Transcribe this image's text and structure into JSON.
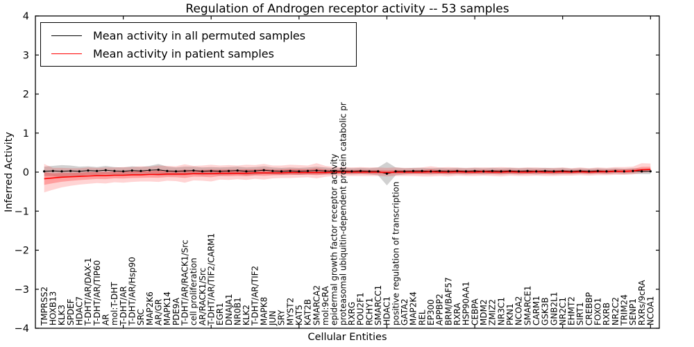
{
  "title": "Regulation of Androgen receptor activity -- 53 samples",
  "axes": {
    "x_label": "Cellular Entities",
    "y_label": "Inferred Activity",
    "y_tick_labels": [
      "4",
      "3",
      "2",
      "1",
      "0",
      "−1",
      "−2",
      "−3",
      "−4"
    ],
    "y_tick_values": [
      4,
      3,
      2,
      1,
      0,
      -1,
      -2,
      -3,
      -4
    ]
  },
  "legend": {
    "entries": [
      {
        "label": "Mean activity in all permuted samples",
        "color": "#000000"
      },
      {
        "label": "Mean activity in patient samples",
        "color": "#ff0000"
      }
    ]
  },
  "colors": {
    "permuted_line": "#000000",
    "permuted_band": "#999999",
    "patient_line": "#ff0000",
    "patient_band": "#ff0000",
    "axis": "#000000"
  },
  "chart_data": {
    "type": "line",
    "title": "Regulation of Androgen receptor activity -- 53 samples",
    "xlabel": "Cellular Entities",
    "ylabel": "Inferred Activity",
    "ylim": [
      -4,
      4
    ],
    "grid": false,
    "legend_position": "upper left",
    "categories": [
      "TMPRSS2",
      "HOXB13",
      "KLK3",
      "SPDEF",
      "HDAC7",
      "T-DHT/AR/DAX-1",
      "T-DHT/AR/TIP60",
      "AR",
      "mol:T-DHT",
      "T-DHT/AR",
      "T-DHT/AR/Hsp90",
      "SRC",
      "MAP2K6",
      "AR/GR",
      "MAPK14",
      "PDE9A",
      "T-DHT/AR/RACK1/Src",
      "cell proliferation",
      "AR/RACK1/Src",
      "T-DHT/AR/TIF2/CARM1",
      "EGR1",
      "DNAJA1",
      "NR0B1",
      "KLK2",
      "T-DHT/AR/TIF2",
      "MAPK8",
      "JUN",
      "SRY",
      "MYST2",
      "KAT5",
      "KAT2B",
      "SMARCA2",
      "mol:9cRA",
      "epidermal growth factor receptor activity",
      "proteasomal ubiquitin-dependent protein catabolic pr",
      "RXRG",
      "POU2F1",
      "RCHY1",
      "SMARCC1",
      "HDAC1",
      "positive regulation of transcription",
      "GATA2",
      "MAP2K4",
      "REL",
      "EP300",
      "APPBP2",
      "BRM/BAF57",
      "RXRA",
      "HSP90AA1",
      "CEBPA",
      "MDM2",
      "ZMIZ2",
      "NR3C1",
      "PKN1",
      "NCOA2",
      "SMARCE1",
      "CARM1",
      "GSK3B",
      "GNB2L1",
      "NR2C1",
      "EHMT2",
      "SIRT1",
      "CREBBP",
      "FOXO1",
      "RXRB",
      "NR2C2",
      "TRIM24",
      "SENP1",
      "RXRs/9cRA",
      "NCOA1"
    ],
    "series": [
      {
        "name": "Mean activity in all permuted samples",
        "color": "#000000",
        "values": [
          0.02,
          0.03,
          0.02,
          0.03,
          0.02,
          0.04,
          0.03,
          0.05,
          0.03,
          0.02,
          0.04,
          0.03,
          0.05,
          0.06,
          0.03,
          0.02,
          0.03,
          0.04,
          0.02,
          0.03,
          0.02,
          0.03,
          0.04,
          0.02,
          0.03,
          0.05,
          0.03,
          0.02,
          0.03,
          0.02,
          0.03,
          0.04,
          0.03,
          0.02,
          0.03,
          0.02,
          0.03,
          0.02,
          0.02,
          -0.04,
          0.02,
          0.02,
          0.03,
          0.03,
          0.02,
          0.03,
          0.02,
          0.03,
          0.02,
          0.03,
          0.02,
          0.03,
          0.02,
          0.03,
          0.02,
          0.03,
          0.02,
          0.03,
          0.02,
          0.03,
          0.02,
          0.03,
          0.02,
          0.03,
          0.02,
          0.03,
          0.02,
          0.03,
          0.02,
          0.02
        ],
        "band_halfwidth": [
          0.12,
          0.13,
          0.16,
          0.14,
          0.12,
          0.11,
          0.1,
          0.11,
          0.1,
          0.1,
          0.11,
          0.1,
          0.11,
          0.15,
          0.11,
          0.1,
          0.11,
          0.1,
          0.1,
          0.1,
          0.1,
          0.1,
          0.1,
          0.1,
          0.1,
          0.1,
          0.09,
          0.09,
          0.09,
          0.09,
          0.09,
          0.1,
          0.09,
          0.08,
          0.08,
          0.08,
          0.08,
          0.08,
          0.1,
          0.3,
          0.1,
          0.08,
          0.08,
          0.08,
          0.08,
          0.08,
          0.08,
          0.08,
          0.08,
          0.08,
          0.08,
          0.08,
          0.08,
          0.08,
          0.08,
          0.08,
          0.08,
          0.08,
          0.08,
          0.08,
          0.07,
          0.07,
          0.07,
          0.07,
          0.07,
          0.07,
          0.07,
          0.07,
          0.07,
          0.07
        ]
      },
      {
        "name": "Mean activity in patient samples",
        "color": "#ff0000",
        "values": [
          -0.17,
          -0.15,
          -0.13,
          -0.12,
          -0.11,
          -0.1,
          -0.09,
          -0.09,
          -0.08,
          -0.08,
          -0.07,
          -0.07,
          -0.06,
          -0.06,
          -0.05,
          -0.05,
          -0.05,
          -0.04,
          -0.04,
          -0.04,
          -0.03,
          -0.03,
          -0.03,
          -0.03,
          -0.02,
          -0.02,
          -0.02,
          -0.02,
          -0.01,
          -0.01,
          -0.01,
          -0.01,
          -0.01,
          0.0,
          0.0,
          0.0,
          0.0,
          0.0,
          0.0,
          -0.01,
          0.0,
          0.0,
          0.0,
          0.0,
          0.01,
          0.0,
          0.0,
          0.01,
          0.0,
          0.0,
          0.01,
          0.0,
          0.0,
          0.01,
          0.0,
          0.0,
          0.01,
          0.0,
          0.0,
          0.01,
          0.0,
          0.01,
          0.0,
          0.01,
          0.01,
          0.02,
          0.02,
          0.03,
          0.06,
          0.07
        ],
        "band_upper": [
          0.38,
          0.26,
          0.24,
          0.22,
          0.21,
          0.22,
          0.2,
          0.21,
          0.2,
          0.21,
          0.2,
          0.22,
          0.2,
          0.23,
          0.21,
          0.2,
          0.25,
          0.2,
          0.21,
          0.23,
          0.2,
          0.21,
          0.2,
          0.22,
          0.2,
          0.23,
          0.19,
          0.19,
          0.2,
          0.19,
          0.18,
          0.24,
          0.17,
          0.13,
          0.13,
          0.12,
          0.13,
          0.12,
          0.12,
          0.12,
          0.12,
          0.11,
          0.11,
          0.12,
          0.14,
          0.12,
          0.13,
          0.11,
          0.11,
          0.12,
          0.11,
          0.12,
          0.13,
          0.11,
          0.11,
          0.12,
          0.11,
          0.11,
          0.11,
          0.11,
          0.1,
          0.11,
          0.1,
          0.11,
          0.1,
          0.11,
          0.11,
          0.11,
          0.17,
          0.15
        ],
        "band_lower": [
          0.35,
          0.3,
          0.26,
          0.23,
          0.21,
          0.2,
          0.19,
          0.2,
          0.18,
          0.19,
          0.18,
          0.17,
          0.18,
          0.19,
          0.17,
          0.18,
          0.22,
          0.17,
          0.18,
          0.2,
          0.16,
          0.17,
          0.15,
          0.17,
          0.15,
          0.17,
          0.14,
          0.13,
          0.14,
          0.13,
          0.12,
          0.15,
          0.11,
          0.1,
          0.1,
          0.1,
          0.1,
          0.1,
          0.1,
          0.1,
          0.1,
          0.1,
          0.1,
          0.11,
          0.12,
          0.1,
          0.11,
          0.1,
          0.1,
          0.1,
          0.1,
          0.1,
          0.11,
          0.1,
          0.1,
          0.1,
          0.1,
          0.1,
          0.1,
          0.1,
          0.09,
          0.09,
          0.09,
          0.09,
          0.09,
          0.09,
          0.09,
          0.09,
          0.08,
          0.07
        ]
      }
    ]
  }
}
